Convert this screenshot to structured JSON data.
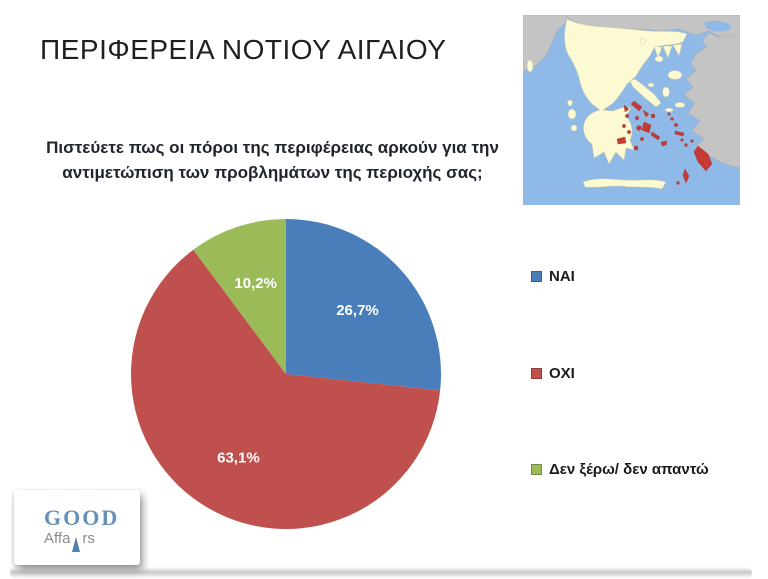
{
  "slide": {
    "title": "ΠΕΡΙΦΕΡΕΙΑ ΝΟΤΙΟΥ ΑΙΓΑΙΟΥ",
    "question": "Πιστεύετε πως οι πόροι της περιφέρειας αρκούν για την αντιμετώπιση των προβλημάτων της περιοχής σας;"
  },
  "chart_data": {
    "type": "pie",
    "title": "Πιστεύετε πως οι πόροι της περιφέρειας αρκούν για την αντιμετώπιση των προβλημάτων της περιοχής σας;",
    "direction": "clockwise",
    "start_angle_deg": 0,
    "legend_position": "right",
    "data_labels": "inside",
    "slices": [
      {
        "label": "ΝΑΙ",
        "value": 26.7,
        "display": "26,7%",
        "color": "#4A7EBB"
      },
      {
        "label": "ΟΧΙ",
        "value": 63.1,
        "display": "63,1%",
        "color": "#C0504D"
      },
      {
        "label": "Δεν ξέρω/ δεν απαντώ",
        "value": 10.2,
        "display": "10,2%",
        "color": "#9BBB59"
      }
    ]
  },
  "map": {
    "depicts": "Map of Greece with the South Aegean islands highlighted in red",
    "colors": {
      "sea": "#8FB9E6",
      "greece_land": "#FBFAD2",
      "neighbor_land": "#C4C4C4",
      "highlight": "#C63A35"
    }
  },
  "logo": {
    "line1": "GOOD",
    "line2_pre": "Affa",
    "line2_post": "rs"
  }
}
